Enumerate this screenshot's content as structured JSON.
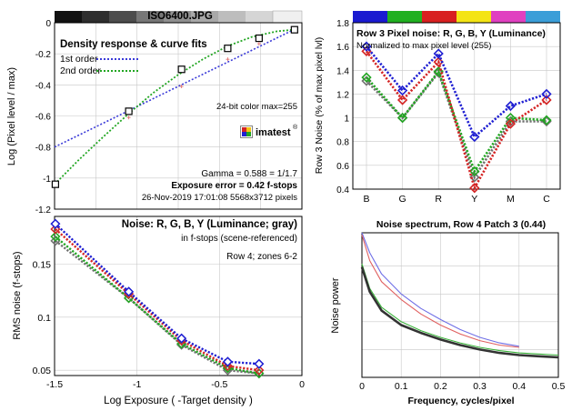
{
  "header": {
    "filename": "ISO6400.JPG"
  },
  "colors": {
    "red": "#d42424",
    "green": "#22a622",
    "blue": "#1f1fd2",
    "black": "#000000",
    "gray": "#707070",
    "error": "#dd0000",
    "filename": "#7a1aa0",
    "grid": "#c8c8c8",
    "swatches": [
      "#1a1ad0",
      "#21b021",
      "#d82020",
      "#f4e414",
      "#e040c0",
      "#3a9ed8"
    ]
  },
  "chart_data": [
    {
      "id": "density",
      "type": "scatter",
      "title": "Density response & curve fits",
      "xlabel": "",
      "ylabel": "Log (Pixel level / max)",
      "xlim": [
        -1.5,
        0
      ],
      "ylim": [
        -1.2,
        0
      ],
      "xticks": [],
      "yticks": [
        0,
        -0.2,
        -0.4,
        -0.6,
        -0.8,
        -1,
        -1.2
      ],
      "ytick_labels": [
        "0",
        "-0.2",
        "-0.4",
        "-0.6",
        "-0.8",
        "-1",
        "-1.2"
      ],
      "grid": true,
      "series": [
        {
          "name": "1st order",
          "style": "dotted",
          "color": "#3a3ad8",
          "x": [
            -1.5,
            -0.05
          ],
          "y": [
            -0.8,
            -0.045
          ]
        },
        {
          "name": "2nd order",
          "style": "dotted",
          "color": "#22a622",
          "x": [
            -1.5,
            -1.35,
            -1.2,
            -1.05,
            -0.9,
            -0.75,
            -0.6,
            -0.45,
            -0.3,
            -0.15,
            -0.05
          ],
          "y": [
            -1.04,
            -0.88,
            -0.73,
            -0.585,
            -0.45,
            -0.335,
            -0.235,
            -0.15,
            -0.09,
            -0.055,
            -0.045
          ]
        },
        {
          "name": "",
          "style": "square",
          "color": "#000000",
          "x": [
            -1.495,
            -1.05,
            -0.73,
            -0.45,
            -0.26,
            -0.045
          ],
          "y": [
            -1.04,
            -0.57,
            -0.3,
            -0.165,
            -0.1,
            -0.045
          ]
        },
        {
          "name": "",
          "style": "plus",
          "color": "#e07070",
          "x": [
            -1.05,
            -0.73,
            -0.45,
            -0.26
          ],
          "y": [
            -0.61,
            -0.41,
            -0.235,
            -0.135
          ]
        }
      ],
      "annotations": {
        "color_depth": "24-bit color  max=255",
        "logo": "imatest",
        "gamma": "Gamma = 0.588 = 1/1.7",
        "exposure_error": "Exposure error = 0.42 f-stops",
        "timestamp": "26-Nov-2019 17:01:08   5568x3712 pixels"
      }
    },
    {
      "id": "row3",
      "type": "line",
      "title": "Row 3 Pixel noise: R, G, B, Y (Luminance)",
      "subtitle": "Normalized to max pixel level (255)",
      "xlabel": "",
      "ylabel": "Row 3 Noise (% of max pixel lvl)",
      "categories": [
        "B",
        "G",
        "R",
        "Y",
        "M",
        "C"
      ],
      "ylim": [
        0.4,
        1.8
      ],
      "yticks": [
        0.4,
        0.6,
        0.8,
        1,
        1.2,
        1.4,
        1.6,
        1.8
      ],
      "ytick_labels": [
        "0.4",
        "0.6",
        "0.8",
        "1",
        "1.2",
        "1.4",
        "1.6",
        "1.8"
      ],
      "grid": true,
      "series": [
        {
          "name": "R",
          "color": "#d42424",
          "values": [
            1.56,
            1.15,
            1.47,
            0.41,
            0.95,
            1.15
          ]
        },
        {
          "name": "G",
          "color": "#22a622",
          "values": [
            1.34,
            1.0,
            1.39,
            0.55,
            1.0,
            0.98
          ]
        },
        {
          "name": "B",
          "color": "#1f1fd2",
          "values": [
            1.6,
            1.23,
            1.54,
            0.84,
            1.1,
            1.2
          ]
        },
        {
          "name": "Y",
          "color": "#707070",
          "values": [
            1.31,
            1.0,
            1.38,
            0.5,
            0.97,
            0.97
          ]
        }
      ]
    },
    {
      "id": "noise",
      "type": "line",
      "title": "Noise: R, G, B, Y (Luminance; gray)",
      "subtitle": "in f-stops (scene-referenced)",
      "note": "Row 4; zones 6-2",
      "xlabel": "Log Exposure ( -Target density )",
      "ylabel": "RMS noise (f-stops)",
      "xlim": [
        -1.5,
        0
      ],
      "ylim": [
        0.045,
        0.195
      ],
      "xticks": [
        -1.5,
        -1,
        -0.5,
        0
      ],
      "xtick_labels": [
        "-1.5",
        "-1",
        "-0.5",
        "0"
      ],
      "yticks": [
        0.05,
        0.1,
        0.15
      ],
      "ytick_labels": [
        "0.05",
        "0.1",
        "0.15"
      ],
      "grid": true,
      "series": [
        {
          "name": "R",
          "color": "#d42424",
          "x": [
            -1.495,
            -1.05,
            -0.73,
            -0.45,
            -0.26
          ],
          "y": [
            0.183,
            0.122,
            0.078,
            0.054,
            0.05
          ]
        },
        {
          "name": "G",
          "color": "#22a622",
          "x": [
            -1.495,
            -1.05,
            -0.73,
            -0.45,
            -0.26
          ],
          "y": [
            0.176,
            0.118,
            0.075,
            0.052,
            0.047
          ]
        },
        {
          "name": "B",
          "color": "#1f1fd2",
          "x": [
            -1.495,
            -1.05,
            -0.73,
            -0.45,
            -0.26
          ],
          "y": [
            0.188,
            0.124,
            0.08,
            0.058,
            0.056
          ]
        },
        {
          "name": "Y",
          "color": "#707070",
          "x": [
            -1.495,
            -1.05,
            -0.73,
            -0.45,
            -0.26
          ],
          "y": [
            0.172,
            0.118,
            0.074,
            0.05,
            0.047
          ]
        }
      ]
    },
    {
      "id": "spectrum",
      "type": "line",
      "title": "Noise spectrum, Row 4 Patch 3 (0.44)",
      "xlabel": "Frequency, cycles/pixel",
      "ylabel": "Noise power",
      "xlim": [
        0,
        0.5
      ],
      "ylim": [
        0,
        1.3
      ],
      "xticks": [
        0,
        0.1,
        0.2,
        0.3,
        0.4,
        0.5
      ],
      "xtick_labels": [
        "0",
        "0.1",
        "0.2",
        "0.3",
        "0.4",
        "0.5"
      ],
      "yticks": [],
      "grid": true,
      "series": [
        {
          "name": "B",
          "color": "#6f6fe6",
          "x": [
            0,
            0.02,
            0.05,
            0.1,
            0.15,
            0.2,
            0.25,
            0.3,
            0.35,
            0.4
          ],
          "y": [
            1.3,
            1.12,
            0.93,
            0.75,
            0.62,
            0.52,
            0.43,
            0.36,
            0.31,
            0.28
          ]
        },
        {
          "name": "R",
          "color": "#e06060",
          "x": [
            0,
            0.02,
            0.05,
            0.1,
            0.15,
            0.2,
            0.25,
            0.3,
            0.35,
            0.4
          ],
          "y": [
            1.28,
            1.05,
            0.86,
            0.7,
            0.57,
            0.47,
            0.39,
            0.33,
            0.29,
            0.27
          ]
        },
        {
          "name": "G",
          "color": "#3bb33b",
          "x": [
            0,
            0.02,
            0.05,
            0.1,
            0.15,
            0.2,
            0.25,
            0.3,
            0.35,
            0.4,
            0.45,
            0.5
          ],
          "y": [
            1.02,
            0.8,
            0.63,
            0.5,
            0.42,
            0.36,
            0.31,
            0.27,
            0.24,
            0.22,
            0.21,
            0.2
          ]
        },
        {
          "name": "Y",
          "color": "#333333",
          "x": [
            0,
            0.02,
            0.05,
            0.1,
            0.15,
            0.2,
            0.25,
            0.3,
            0.35,
            0.4,
            0.45,
            0.5
          ],
          "y": [
            0.99,
            0.77,
            0.6,
            0.47,
            0.4,
            0.34,
            0.29,
            0.25,
            0.22,
            0.2,
            0.19,
            0.18
          ]
        }
      ]
    }
  ]
}
